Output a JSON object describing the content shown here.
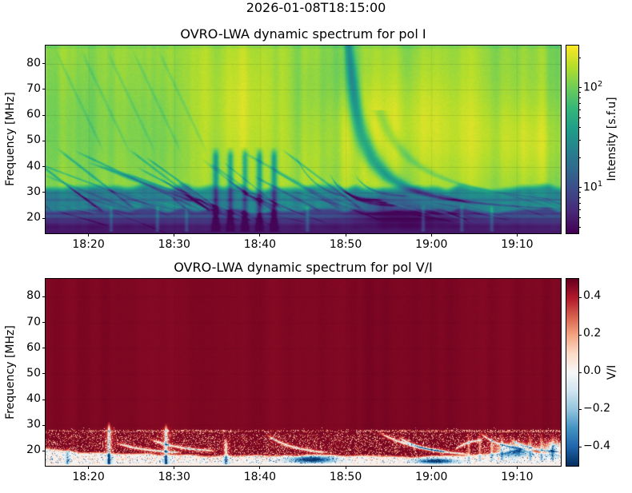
{
  "figure": {
    "suptitle": "2026-01-08T18:15:00",
    "background": "#ffffff"
  },
  "colormaps": {
    "viridis": [
      "#440154",
      "#482878",
      "#3e4989",
      "#31688e",
      "#26828e",
      "#1f9e89",
      "#35b779",
      "#6ece58",
      "#b5de2b",
      "#fde725"
    ],
    "rdbu_r": [
      "#053061",
      "#2166ac",
      "#4393c3",
      "#92c5de",
      "#d1e5f0",
      "#f7f7f7",
      "#fddbc7",
      "#f4a582",
      "#d6604d",
      "#b2182b",
      "#67001f"
    ]
  },
  "chart_data": [
    {
      "type": "heatmap",
      "title": "OVRO-LWA dynamic spectrum for pol I",
      "ylabel": "Frequency [MHz]",
      "x_start": "18:15",
      "x_end": "19:15",
      "x_ticks": [
        {
          "label": "18:20",
          "minute": 5
        },
        {
          "label": "18:30",
          "minute": 15
        },
        {
          "label": "18:40",
          "minute": 25
        },
        {
          "label": "18:50",
          "minute": 35
        },
        {
          "label": "19:00",
          "minute": 45
        },
        {
          "label": "19:10",
          "minute": 55
        }
      ],
      "y_ticks": [
        20,
        30,
        40,
        50,
        60,
        70,
        80
      ],
      "ylim": [
        14.5,
        87
      ],
      "colormap": "viridis",
      "grid": true,
      "colorbar": {
        "label": "Intensity [s.f.u]",
        "scale": "log",
        "vmin": 3.5,
        "vmax": 265,
        "ticks": [
          {
            "text": "10",
            "sup": "2",
            "value": 100
          },
          {
            "text": "10",
            "sup": "1",
            "value": 10
          }
        ],
        "minor_ticks": [
          4,
          5,
          6,
          7,
          8,
          9,
          20,
          30,
          40,
          50,
          60,
          70,
          80,
          90,
          200
        ]
      },
      "features": {
        "background_level": 0.85,
        "bands": {
          "mid_top": 31.5,
          "mid_level": 0.46,
          "low_top": 23.2,
          "low_level": 0.24,
          "bottom_top": 20.2,
          "bottom_level": 0.1
        },
        "dark_lines": [
          {
            "f": 27.3,
            "amp": 0.13,
            "w": 0.5
          },
          {
            "f": 21.9,
            "amp": 0.1,
            "w": 0.4
          }
        ],
        "patches": [
          {
            "t": 41,
            "f": 56,
            "rt": 9,
            "rf": 20,
            "amp": 0.09
          },
          {
            "t": 57,
            "f": 50,
            "rt": 7,
            "rf": 16,
            "amp": 0.08
          },
          {
            "t": 22,
            "f": 62,
            "rt": 6,
            "rf": 25,
            "amp": 0.05
          },
          {
            "t": 3,
            "f": 55,
            "rt": 5,
            "rf": 30,
            "amp": -0.06
          },
          {
            "t": 13,
            "f": 52,
            "rt": 5,
            "rf": 25,
            "amp": -0.05
          },
          {
            "t": 31,
            "f": 68,
            "rt": 3,
            "rf": 20,
            "amp": -0.05
          },
          {
            "t": 35.8,
            "f": 76,
            "rt": 2.2,
            "rf": 14,
            "amp": -0.07
          },
          {
            "t": 43,
            "f": 22,
            "rt": 6,
            "rf": 4,
            "amp": -0.2
          },
          {
            "t": 39,
            "f": 25,
            "rt": 3,
            "rf": 5,
            "amp": -0.14
          }
        ],
        "fan": {
          "count": 28,
          "t_first": -5,
          "t_step": 1.2,
          "f_base": 28,
          "f_spread": 20,
          "f_stop": 22.5
        },
        "wisps": {
          "times": [
            1,
            4,
            7,
            10,
            13
          ],
          "f_top": 86,
          "f_stop": 45,
          "slope": -7,
          "amp": 0.06
        },
        "vertical_lanes": {
          "times": [
            19.8,
            21.5,
            23.2,
            24.9,
            26.6
          ],
          "f_top": 48,
          "amp": 0.3,
          "w": 0.35
        },
        "main_drift": {
          "t0": 35.3,
          "c": 1.5,
          "f_asym": 20,
          "f_lo": 23.8,
          "amp": 0.34
        },
        "echo_drift": {
          "t0": 37.2,
          "c": 2.8,
          "f_asym": 20,
          "f_lo": 23.8,
          "f_hi": 62,
          "amp": 0.1
        },
        "arcs": [
          {
            "t0": 29,
            "f0": 45,
            "f1": 27,
            "tau": 2.5,
            "amp": 0.18
          },
          {
            "t0": 33,
            "f0": 38,
            "f1": 27,
            "tau": 1.6,
            "amp": 0.26
          },
          {
            "t0": 33.9,
            "f0": 34.5,
            "f1": 26,
            "tau": 1.6,
            "amp": 0.26
          },
          {
            "t0": 34.8,
            "f0": 31.5,
            "f1": 25,
            "tau": 1.6,
            "amp": 0.24
          },
          {
            "t0": 36,
            "f0": 37,
            "f1": 28.5,
            "tau": 1.8,
            "amp": 0.2
          }
        ],
        "bright_columns": [
          7.6,
          13.0,
          16.4,
          30.5,
          44,
          48.5,
          52
        ],
        "dark_right_columns": [
          58.8,
          59.6
        ],
        "fiber_count": 45
      }
    },
    {
      "type": "heatmap",
      "title": "OVRO-LWA dynamic spectrum for pol V/I",
      "ylabel": "Frequency [MHz]",
      "x_start": "18:15",
      "x_end": "19:15",
      "x_ticks": [
        {
          "label": "18:20",
          "minute": 5
        },
        {
          "label": "18:30",
          "minute": 15
        },
        {
          "label": "18:40",
          "minute": 25
        },
        {
          "label": "18:50",
          "minute": 35
        },
        {
          "label": "19:00",
          "minute": 45
        },
        {
          "label": "19:10",
          "minute": 55
        }
      ],
      "y_ticks": [
        20,
        30,
        40,
        50,
        60,
        70,
        80
      ],
      "ylim": [
        14.5,
        87
      ],
      "colormap": "rdbu_r",
      "grid": true,
      "colorbar": {
        "label": "V/I",
        "scale": "linear",
        "vmin": -0.5,
        "vmax": 0.5,
        "ticks": [
          {
            "text": "0.4",
            "value": 0.4
          },
          {
            "text": "0.2",
            "value": 0.2
          },
          {
            "text": "0.0",
            "value": 0.0
          },
          {
            "text": "−0.2",
            "value": -0.2
          },
          {
            "text": "−0.4",
            "value": -0.4
          }
        ],
        "minor_ticks": []
      },
      "features": {
        "saturation": 0.468,
        "white_band": {
          "f_base": 18,
          "left_boost": 2.8,
          "left_tau": 7,
          "bump_t": 55,
          "bump_amp": 2.2,
          "bump_w": 3.5
        },
        "speckle_line_f": 28,
        "white_spikes": [
          {
            "t": 2.5,
            "f_top": 22,
            "amp": 0.22
          },
          {
            "t": 7.35,
            "f_top": 31.5,
            "amp": 0.42
          },
          {
            "t": 14.0,
            "f_top": 31,
            "amp": 0.4
          },
          {
            "t": 21.0,
            "f_top": 26,
            "amp": 0.3
          }
        ],
        "red_spike_times": [
          49.3,
          50.6,
          52.0,
          53.2,
          56.5,
          57.8,
          59.1
        ],
        "streaks": [
          {
            "t0": 25.5,
            "f0": 27,
            "t1": 33,
            "f1": 18.5
          },
          {
            "t0": 38.5,
            "f0": 28,
            "t1": 50,
            "f1": 17.5
          },
          {
            "t0": 41,
            "f0": 26,
            "t1": 47,
            "f1": 19
          },
          {
            "t0": 50.5,
            "f0": 27.5,
            "t1": 56,
            "f1": 20
          },
          {
            "t0": 8,
            "f0": 23.5,
            "t1": 16,
            "f1": 19
          },
          {
            "t0": 12,
            "f0": 25,
            "t1": 20,
            "f1": 19.5
          },
          {
            "t0": 47.5,
            "f0": 20,
            "t1": 51,
            "f1": 25
          },
          {
            "t0": 54,
            "f0": 25,
            "t1": 60,
            "f1": 19
          }
        ],
        "blue_blobs": [
          {
            "t": 31,
            "f": 16.8,
            "rt": 2.5,
            "rf": 1.2,
            "amp": 0.6
          },
          {
            "t": 45.5,
            "f": 16.2,
            "rt": 2.2,
            "rf": 1.0,
            "amp": 0.55
          },
          {
            "t": 54.5,
            "f": 20.5,
            "rt": 2.0,
            "rf": 2.5,
            "amp": 0.5
          },
          {
            "t": 59.3,
            "f": 21.0,
            "rt": 1.2,
            "rf": 2.5,
            "amp": 0.55
          }
        ]
      }
    }
  ]
}
